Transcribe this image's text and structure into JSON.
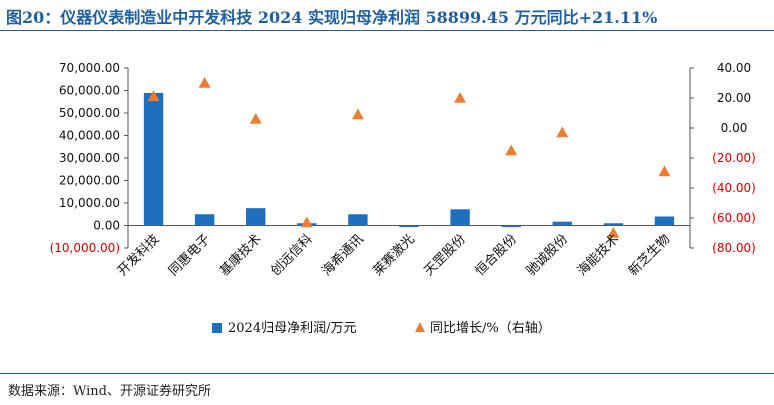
{
  "header": {
    "title": "图20：仪器仪表制造业中开发科技 2024 实现归母净利润 58899.45 万元同比+21.11%"
  },
  "footer": {
    "source": "数据来源：Wind、开源证券研究所"
  },
  "colors": {
    "bar": "#1f6fbf",
    "marker": "#ed7d31",
    "negative_label": "#cc0000",
    "title": "#1f5f9e"
  },
  "chart_data": {
    "type": "bar",
    "categories": [
      "开发科技",
      "同惠电子",
      "基康技术",
      "创远信科",
      "海希通讯",
      "莱赛激光",
      "天罡股份",
      "恒合股份",
      "驰诚股份",
      "海能技术",
      "新芝生物"
    ],
    "series": [
      {
        "name": "2024归母净利润/万元",
        "type": "bar",
        "axis": "left",
        "values": [
          58899.45,
          5000,
          7700,
          1000,
          5000,
          -700,
          7200,
          -700,
          1700,
          1000,
          4000
        ]
      },
      {
        "name": "同比增长/%（右轴）",
        "type": "scatter",
        "marker": "triangle",
        "axis": "right",
        "values": [
          21.11,
          30,
          6,
          -63,
          9,
          null,
          20,
          -15,
          -3,
          -70,
          -29
        ]
      }
    ],
    "y_left": {
      "ylim": [
        -10000,
        70000
      ],
      "ticks": [
        70000,
        60000,
        50000,
        40000,
        30000,
        20000,
        10000,
        0,
        -10000
      ],
      "tick_labels": [
        "70,000.00",
        "60,000.00",
        "50,000.00",
        "40,000.00",
        "30,000.00",
        "20,000.00",
        "10,000.00",
        "0.00",
        "(10,000.00)"
      ]
    },
    "y_right": {
      "ylim": [
        -80,
        40
      ],
      "ticks": [
        40,
        20,
        0,
        -20,
        -40,
        -60,
        -80
      ],
      "tick_labels": [
        "40.00",
        "20.00",
        "0.00",
        "(20.00)",
        "(40.00)",
        "(60.00)",
        "(80.00)"
      ]
    },
    "legend": {
      "position": "bottom",
      "bar_label": "2024归母净利润/万元",
      "marker_label": "同比增长/%（右轴）"
    },
    "grid": false
  }
}
